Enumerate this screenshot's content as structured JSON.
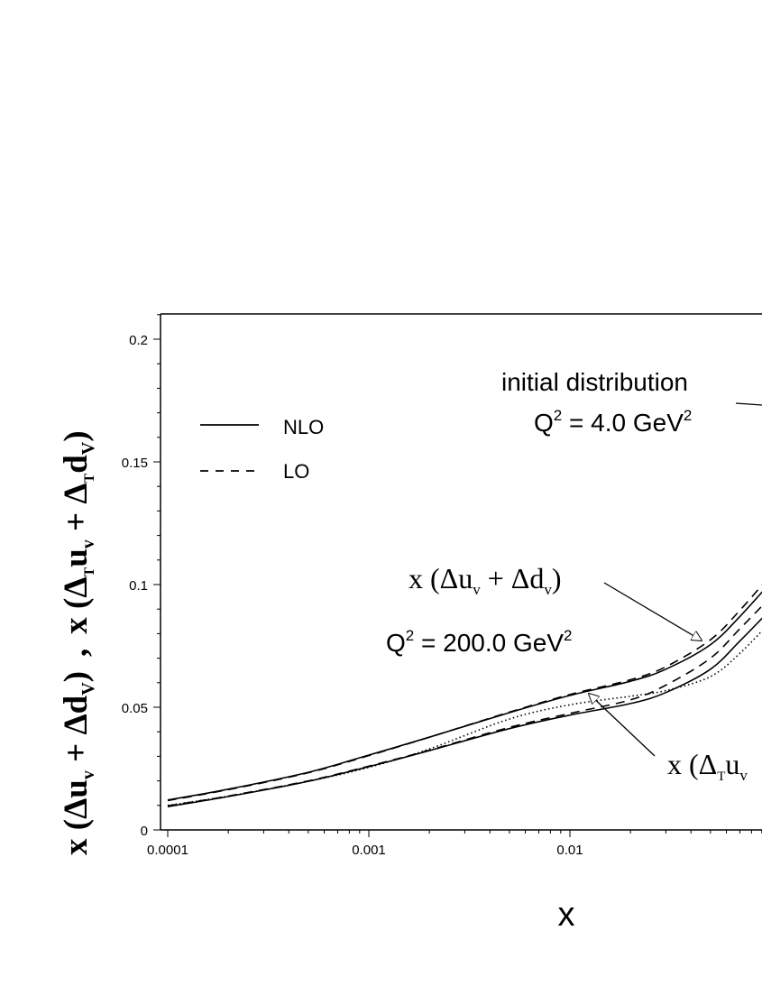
{
  "chart_data": {
    "type": "line",
    "xlabel": "x",
    "ylabel": {
      "part1_base": "x (Δu",
      "part1_sub1": "v",
      "part1_mid": " + Δd",
      "part1_sub2": "V",
      "part1_end": ")",
      "separator": ",",
      "part2_base": "x (Δ",
      "part2_sub0": "T",
      "part2_mid1": "u",
      "part2_sub1": "v",
      "part2_mid2": " + Δ",
      "part2_sub2": "T",
      "part2_mid3": "d",
      "part2_sub3": "V",
      "part2_end": ")"
    },
    "xscale": "log",
    "xlim": [
      0.0001,
      0.1
    ],
    "ylim": [
      0,
      0.21
    ],
    "xticks": [
      {
        "value": 0.0001,
        "label": "0.0001"
      },
      {
        "value": 0.001,
        "label": "0.001"
      },
      {
        "value": 0.01,
        "label": "0.01"
      }
    ],
    "yticks": [
      {
        "value": 0,
        "label": "0"
      },
      {
        "value": 0.05,
        "label": "0.05"
      },
      {
        "value": 0.1,
        "label": "0.1"
      },
      {
        "value": 0.15,
        "label": "0.15"
      },
      {
        "value": 0.2,
        "label": "0.2"
      }
    ],
    "legend": {
      "placement": "top-left",
      "entries": [
        {
          "label": "NLO",
          "style": "solid"
        },
        {
          "label": "LO",
          "style": "dashed"
        }
      ]
    },
    "annotations": {
      "initial_line1": "initial distribution",
      "initial_q": "Q",
      "initial_q_exp": "2",
      "initial_val": " = 4.0 GeV",
      "initial_val_exp": "2",
      "q200_q": "Q",
      "q200_q_exp": "2",
      "q200_val": " = 200.0 GeV",
      "q200_val_exp": "2",
      "upper_label_base": "x (Δu",
      "upper_label_sub1": "v",
      "upper_label_mid": " + Δd",
      "upper_label_sub2": "v",
      "upper_label_end": ")",
      "lower_label_base": "x (Δ",
      "lower_label_sub0": "T",
      "lower_label_mid": "u",
      "lower_label_sub1": "v"
    },
    "series": [
      {
        "group": "x (Δu_v + Δd_v)",
        "order": "NLO",
        "style": "solid",
        "x": [
          0.0001,
          0.0002,
          0.0005,
          0.001,
          0.002,
          0.005,
          0.01,
          0.02,
          0.03,
          0.05,
          0.07,
          0.1
        ],
        "y": [
          0.0122,
          0.0166,
          0.0235,
          0.0305,
          0.0378,
          0.0478,
          0.0548,
          0.0606,
          0.0655,
          0.0755,
          0.087,
          0.101
        ]
      },
      {
        "group": "x (Δu_v + Δd_v)",
        "order": "LO",
        "style": "dashed",
        "x": [
          0.0001,
          0.0002,
          0.0005,
          0.001,
          0.002,
          0.005,
          0.01,
          0.02,
          0.03,
          0.05,
          0.07,
          0.1
        ],
        "y": [
          0.012,
          0.0164,
          0.0233,
          0.0303,
          0.0378,
          0.048,
          0.0552,
          0.0612,
          0.0665,
          0.0775,
          0.0895,
          0.104
        ]
      },
      {
        "group": "x (Δ_T u_v + Δ_T d_v)",
        "order": "NLO",
        "style": "solid",
        "x": [
          0.0001,
          0.0002,
          0.0005,
          0.001,
          0.002,
          0.005,
          0.01,
          0.02,
          0.03,
          0.05,
          0.07,
          0.1
        ],
        "y": [
          0.0095,
          0.0136,
          0.0198,
          0.0258,
          0.0323,
          0.0413,
          0.0468,
          0.0515,
          0.056,
          0.0655,
          0.077,
          0.09
        ]
      },
      {
        "group": "x (Δ_T u_v + Δ_T d_v)",
        "order": "LO",
        "style": "dashed",
        "x": [
          0.0001,
          0.0002,
          0.0005,
          0.001,
          0.002,
          0.005,
          0.01,
          0.02,
          0.03,
          0.05,
          0.07,
          0.1
        ],
        "y": [
          0.0098,
          0.0138,
          0.02,
          0.026,
          0.0325,
          0.0418,
          0.0475,
          0.053,
          0.059,
          0.07,
          0.082,
          0.095
        ]
      },
      {
        "group": "initial distribution",
        "style": "dotted",
        "x": [
          0.0001,
          0.0002,
          0.0005,
          0.001,
          0.002,
          0.005,
          0.01,
          0.02,
          0.03,
          0.05,
          0.07,
          0.1
        ],
        "y": [
          0.01,
          0.0138,
          0.0198,
          0.0255,
          0.033,
          0.0452,
          0.051,
          0.0545,
          0.0568,
          0.0625,
          0.072,
          0.085
        ]
      }
    ]
  }
}
